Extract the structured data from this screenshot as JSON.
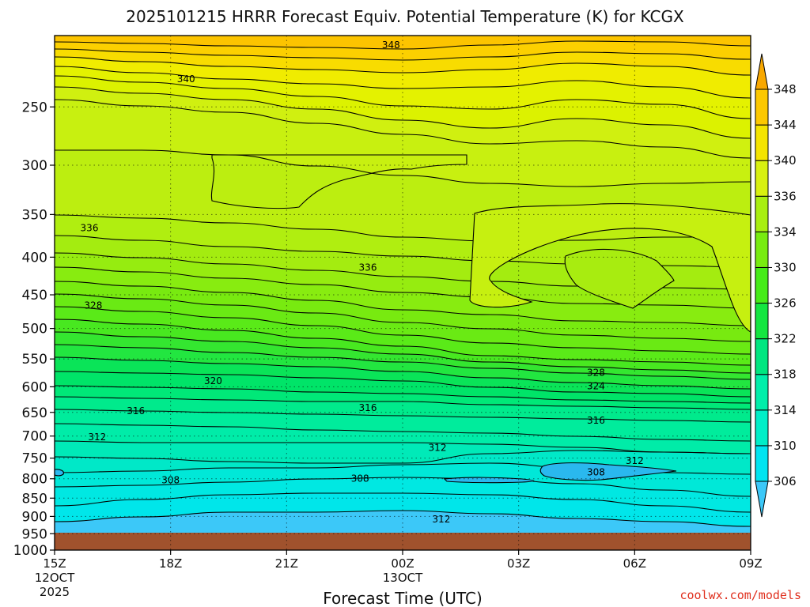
{
  "chart_data": {
    "type": "contour",
    "title": "2025101215 HRRR Forecast Equiv. Potential Temperature (K) for KCGX",
    "xlabel": "Forecast Time (UTC)",
    "ylabel": "",
    "credit": "coolwx.com/models",
    "x_ticks": [
      {
        "label": "15Z",
        "sub1": "12OCT",
        "sub2": "2025",
        "hour": 0
      },
      {
        "label": "18Z",
        "sub1": "",
        "sub2": "",
        "hour": 3
      },
      {
        "label": "21Z",
        "sub1": "",
        "sub2": "",
        "hour": 6
      },
      {
        "label": "00Z",
        "sub1": "13OCT",
        "sub2": "",
        "hour": 9
      },
      {
        "label": "03Z",
        "sub1": "",
        "sub2": "",
        "hour": 12
      },
      {
        "label": "06Z",
        "sub1": "",
        "sub2": "",
        "hour": 15
      },
      {
        "label": "09Z",
        "sub1": "",
        "sub2": "",
        "hour": 18
      }
    ],
    "xlim_hours": [
      0,
      18
    ],
    "y_ticks": [
      250,
      300,
      350,
      400,
      450,
      500,
      550,
      600,
      650,
      700,
      750,
      800,
      850,
      900,
      950,
      1000
    ],
    "ylim_hPa": [
      200,
      1000
    ],
    "y_scale": "log",
    "grid": true,
    "colorbar": {
      "levels": [
        306,
        310,
        314,
        318,
        322,
        326,
        330,
        334,
        336,
        340,
        344,
        348
      ],
      "colors": [
        "#3cc8f8",
        "#00e4f0",
        "#00eec8",
        "#00eeaa",
        "#00e680",
        "#14e640",
        "#46ec18",
        "#78ec10",
        "#a8ee10",
        "#d8f010",
        "#f4e400",
        "#fcc800",
        "#f8a800"
      ],
      "placement": "right"
    },
    "ground_color": "#a0522d",
    "contour_labels": [
      {
        "text": "348",
        "hour": 8.7,
        "p": 206
      },
      {
        "text": "340",
        "hour": 3.4,
        "p": 229
      },
      {
        "text": "336",
        "hour": 0.9,
        "p": 365
      },
      {
        "text": "336",
        "hour": 8.1,
        "p": 413
      },
      {
        "text": "328",
        "hour": 1.0,
        "p": 465
      },
      {
        "text": "320",
        "hour": 4.1,
        "p": 589
      },
      {
        "text": "328",
        "hour": 14.0,
        "p": 574
      },
      {
        "text": "324",
        "hour": 14.0,
        "p": 599
      },
      {
        "text": "316",
        "hour": 2.1,
        "p": 647
      },
      {
        "text": "316",
        "hour": 8.1,
        "p": 641
      },
      {
        "text": "316",
        "hour": 14.0,
        "p": 667
      },
      {
        "text": "312",
        "hour": 1.1,
        "p": 702
      },
      {
        "text": "312",
        "hour": 9.9,
        "p": 726
      },
      {
        "text": "312",
        "hour": 15.0,
        "p": 756
      },
      {
        "text": "308",
        "hour": 3.0,
        "p": 803
      },
      {
        "text": "308",
        "hour": 7.9,
        "p": 800
      },
      {
        "text": "308",
        "hour": 14.0,
        "p": 784
      },
      {
        "text": "312",
        "hour": 10.0,
        "p": 908
      }
    ]
  }
}
